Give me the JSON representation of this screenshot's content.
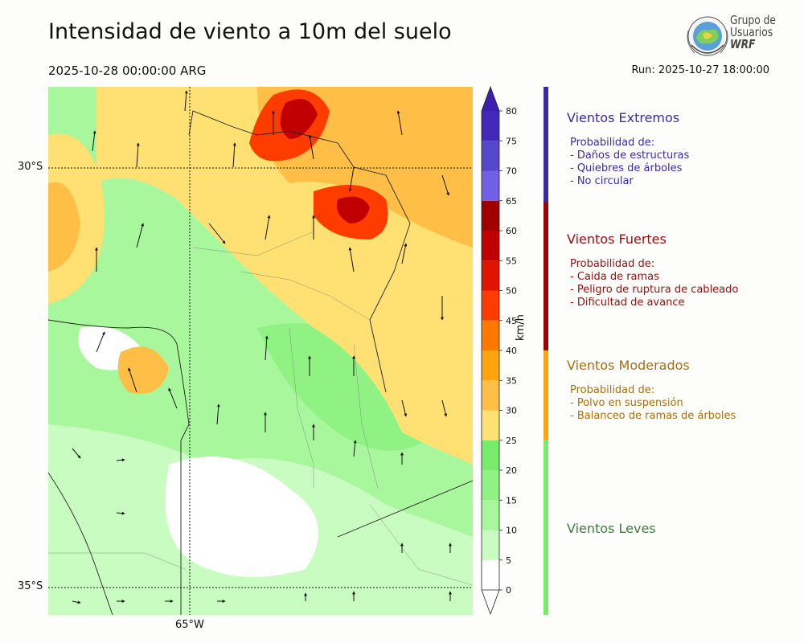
{
  "header": {
    "title": "Intensidad de viento a 10m del suelo",
    "valid_time": "2025-10-28 00:00:00 ARG",
    "run_time": "Run: 2025-10-27 18:00:00"
  },
  "logo": {
    "line1": "Grupo de",
    "line2": "Usuarios",
    "line3": "WRF"
  },
  "map": {
    "lat_labels": [
      "30°S",
      "35°S"
    ],
    "lon_labels": [
      "65°W"
    ]
  },
  "colorbar": {
    "unit": "km/h",
    "ticks": [
      "0",
      "5",
      "10",
      "15",
      "20",
      "25",
      "30",
      "35",
      "40",
      "45",
      "50",
      "55",
      "60",
      "65",
      "70",
      "75",
      "80"
    ],
    "colors": [
      "#ffffff",
      "#c9fcc0",
      "#a8f79d",
      "#8ff283",
      "#76ec6a",
      "#ffe072",
      "#ffbf47",
      "#ffa30f",
      "#ff7800",
      "#ff3c00",
      "#e01400",
      "#c00000",
      "#a00000",
      "#7160e6",
      "#5646cc",
      "#4329ba"
    ],
    "extend_min": "#ffffff",
    "extend_max": "#3d1fb0"
  },
  "categories": [
    {
      "title": "Vientos Extremos",
      "color": "#3b2aa6",
      "intro": "Probabilidad de:",
      "items": [
        "- Daños de estructuras",
        "- Quiebres de árboles",
        "- No circular"
      ]
    },
    {
      "title": "Vientos Fuertes",
      "color": "#9b0c0c",
      "intro": "Probabilidad de:",
      "items": [
        "- Caida de ramas",
        "- Peligro de ruptura de cableado",
        "- Dificultad de avance"
      ]
    },
    {
      "title": "Vientos Moderados",
      "color": "#a8700c",
      "intro": "Probabilidad de:",
      "items": [
        "- Polvo en suspensión",
        "- Balanceo de ramas de árboles"
      ]
    },
    {
      "title": "Vientos Leves",
      "color": "#3e7d3e",
      "intro": "",
      "items": []
    }
  ],
  "side_bar_colors": [
    "#3b2aa6",
    "#a20000",
    "#ffa30f",
    "#76ec6a"
  ]
}
